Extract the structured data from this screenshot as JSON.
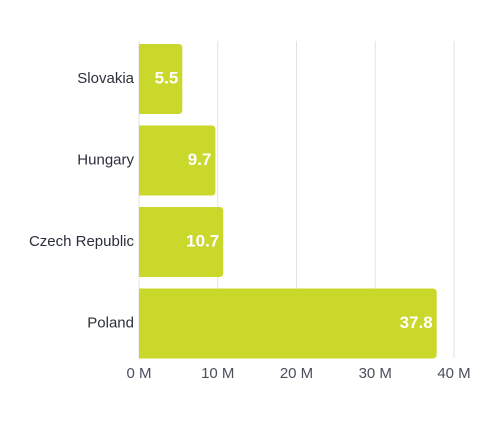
{
  "chart_data": {
    "type": "bar",
    "orientation": "horizontal",
    "categories": [
      "Slovakia",
      "Hungary",
      "Czech Republic",
      "Poland"
    ],
    "values": [
      5.5,
      9.7,
      10.7,
      37.8
    ],
    "data_labels": [
      "5.5",
      "9.7",
      "10.7",
      "37.8"
    ],
    "title": "",
    "xlabel": "",
    "ylabel": "",
    "xlim": [
      0,
      40
    ],
    "x_ticks": [
      0,
      10,
      20,
      30,
      40
    ],
    "x_tick_labels": [
      "0 M",
      "10 M",
      "20 M",
      "30 M",
      "40 M"
    ],
    "grid": true,
    "legend": "none",
    "colors": {
      "bar": "#c9d82a",
      "grid": "#e3e3e3",
      "label": "#2b2f3a",
      "value_label": "#ffffff"
    }
  }
}
